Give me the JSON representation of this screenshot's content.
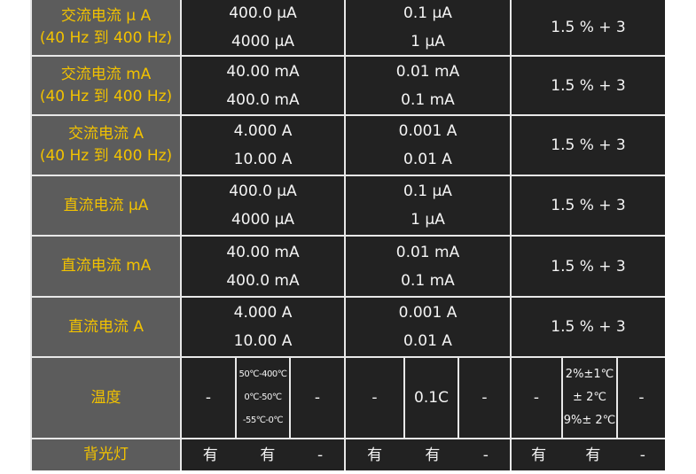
{
  "rows": [
    {
      "label": [
        "交流电流 μ A",
        "(40 Hz 到 400 Hz)"
      ],
      "range": [
        "400.0 μA",
        "4000 μA"
      ],
      "resolution": [
        "0.1 μA",
        "1 μA"
      ],
      "accuracy": "1.5 % + 3"
    },
    {
      "label": [
        "交流电流 mA",
        "(40 Hz 到 400 Hz)"
      ],
      "range": [
        "40.00 mA",
        "400.0 mA"
      ],
      "resolution": [
        "0.01 mA",
        "0.1 mA"
      ],
      "accuracy": "1.5 % + 3"
    },
    {
      "label": [
        "交流电流 A",
        "(40 Hz 到 400 Hz)"
      ],
      "range": [
        "4.000 A",
        "10.00 A"
      ],
      "resolution": [
        "0.001 A",
        "0.01 A"
      ],
      "accuracy": "1.5 % + 3"
    },
    {
      "label": [
        "直流电流 μA"
      ],
      "range": [
        "400.0 μA",
        "4000 μA"
      ],
      "resolution": [
        "0.1 μA",
        "1 μA"
      ],
      "accuracy": "1.5 % + 3"
    },
    {
      "label": [
        "直流电流 mA"
      ],
      "range": [
        "40.00 mA",
        "400.0 mA"
      ],
      "resolution": [
        "0.01 mA",
        "0.1 mA"
      ],
      "accuracy": "1.5 % + 3"
    },
    {
      "label": [
        "直流电流 A"
      ],
      "range": [
        "4.000 A",
        "10.00 A"
      ],
      "resolution": [
        "0.001 A",
        "0.01 A"
      ],
      "accuracy": "1.5 % + 3"
    }
  ],
  "temperature": {
    "label": "温度",
    "cells": [
      [
        "-"
      ],
      [
        "50℃-400℃",
        "0℃-50℃",
        "-55℃-0℃"
      ],
      [
        "-"
      ],
      [
        "-"
      ],
      [
        "0.1C"
      ],
      [
        "-"
      ],
      [
        "-"
      ],
      [
        "2%±1℃",
        "± 2℃",
        "9%± 2℃"
      ],
      [
        "-"
      ]
    ]
  },
  "backlight": {
    "label": "背光灯",
    "cells": [
      "有",
      "有",
      "-",
      "有",
      "有",
      "-",
      "有",
      "有",
      "-"
    ]
  }
}
